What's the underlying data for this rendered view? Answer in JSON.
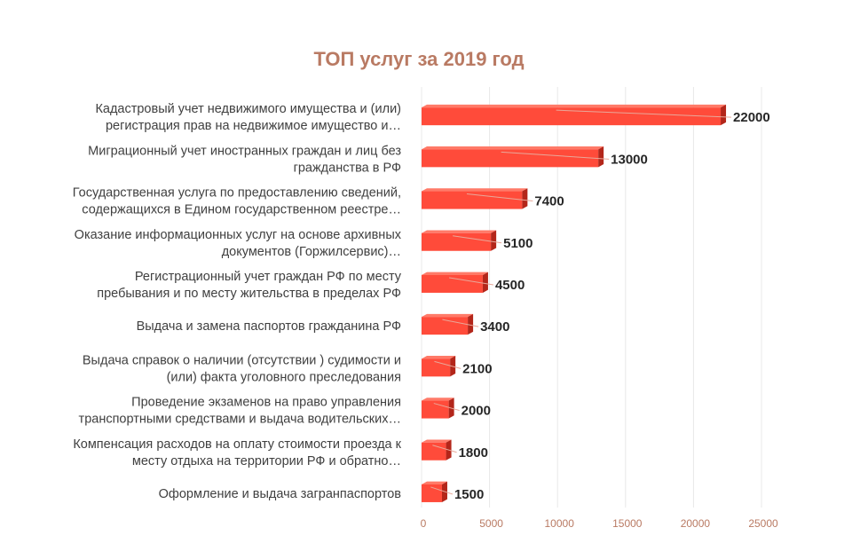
{
  "chart_data": {
    "type": "bar",
    "orientation": "horizontal",
    "title": "ТОП услуг за 2019 год",
    "categories": [
      [
        "Кадастровый учет недвижимого имущества и (или)",
        "регистрация прав на недвижимое имущество и…"
      ],
      [
        "Миграционный учет иностранных граждан и лиц без",
        "гражданства в РФ"
      ],
      [
        "Государственная услуга по предоставлению сведений,",
        "содержащихся в Едином государственном реестре…"
      ],
      [
        "Оказание информационных услуг на основе архивных",
        "документов (Горжилсервис)…"
      ],
      [
        "Регистрационный учет граждан РФ по месту",
        "пребывания и по месту жительства в пределах РФ"
      ],
      [
        "Выдача и замена паспортов гражданина РФ"
      ],
      [
        "Выдача справок о наличии (отсутствии ) судимости и",
        "(или) факта уголовного преследования"
      ],
      [
        "Проведение экзаменов на право управления",
        "транспортными средствами и выдача водительских…"
      ],
      [
        "Компенсация расходов на оплату стоимости проезда к",
        "месту отдыха на территории РФ и обратно…"
      ],
      [
        "Оформление и выдача загранпаспортов"
      ]
    ],
    "values": [
      22000,
      13000,
      7400,
      5100,
      4500,
      3400,
      2100,
      2000,
      1800,
      1500
    ],
    "value_labels": [
      "22000",
      "13000",
      "7400",
      "5100",
      "4500",
      "3400",
      "2100",
      "2000",
      "1800",
      "1500"
    ],
    "xlim": [
      0,
      25000
    ],
    "xticks": [
      0,
      5000,
      10000,
      15000,
      20000,
      25000
    ],
    "xtick_labels": [
      "0",
      "5000",
      "10000",
      "15000",
      "20000",
      "25000"
    ],
    "grid": true,
    "legend": "none",
    "colors": {
      "bar": "#ff4b3a",
      "bar_top": "#ff7a68",
      "bar_side": "#b3261a",
      "grid": "#e8e8e8",
      "title": "#b97a63",
      "ticks": "#b97a63"
    }
  }
}
